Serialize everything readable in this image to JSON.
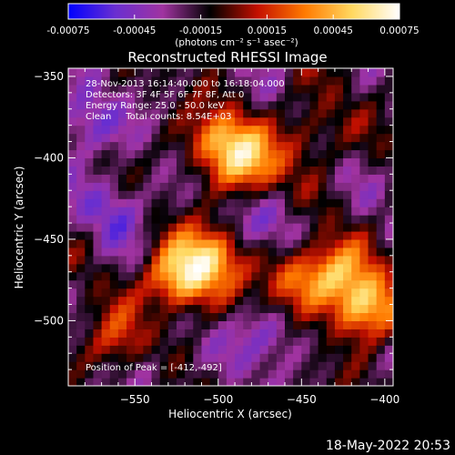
{
  "colorbar": {
    "tick_labels": [
      "-0.00075",
      "-0.00045",
      "-0.00015",
      "0.00015",
      "0.00045",
      "0.00075"
    ],
    "unit_label": "(photons cm⁻² s⁻¹ asec⁻²)",
    "range": [
      -0.00075,
      0.00075
    ],
    "colormap": [
      "#0000ff",
      "#6a2fd0",
      "#a033a0",
      "#000000",
      "#c41000",
      "#ff7a00",
      "#ffd860",
      "#ffffff"
    ]
  },
  "chart_data": {
    "type": "heatmap",
    "title": "Reconstructed RHESSI Image",
    "xlabel": "Heliocentric X (arcsec)",
    "ylabel": "Heliocentric Y (arcsec)",
    "xlim": [
      -590,
      -395
    ],
    "ylim": [
      -540,
      -345
    ],
    "x_ticks": [
      -550,
      -500,
      -450,
      -400
    ],
    "y_ticks": [
      -350,
      -400,
      -450,
      -500
    ],
    "x_tick_labels": [
      "−550",
      "−500",
      "−450",
      "−400"
    ],
    "y_tick_labels": [
      "−350",
      "−400",
      "−450",
      "−500"
    ],
    "grid": false,
    "peak": [
      -412,
      -492
    ],
    "bright_regions": [
      {
        "x": -498,
        "y": -390,
        "value": 0.0006
      },
      {
        "x": -480,
        "y": -405,
        "value": 0.0005
      },
      {
        "x": -525,
        "y": -475,
        "value": 0.0007
      },
      {
        "x": -505,
        "y": -460,
        "value": 0.0006
      },
      {
        "x": -412,
        "y": -492,
        "value": 0.00075
      },
      {
        "x": -430,
        "y": -470,
        "value": 0.0005
      },
      {
        "x": -455,
        "y": -475,
        "value": 0.00045
      },
      {
        "x": -560,
        "y": -515,
        "value": 0.0004
      },
      {
        "x": -445,
        "y": -385,
        "value": 0.0003
      }
    ],
    "dim_regions": [
      {
        "x": -580,
        "y": -380,
        "value": -0.0004
      },
      {
        "x": -560,
        "y": -430,
        "value": -0.0003
      },
      {
        "x": -470,
        "y": -510,
        "value": -0.0003
      },
      {
        "x": -540,
        "y": -525,
        "value": -0.0002
      },
      {
        "x": -470,
        "y": -440,
        "value": -0.00025
      }
    ],
    "annotations": [
      "28-Nov-2013 16:14:40.000 to 16:18:04.000",
      "Detectors: 3F 4F 5F 6F 7F 8F, Att 0",
      "Energy Range: 25.0 - 50.0 keV",
      "Clean     Total counts: 8.54E+03",
      "Position of Peak = [-412,-492]"
    ]
  },
  "footer": {
    "timestamp": "18-May-2022 20:53"
  }
}
